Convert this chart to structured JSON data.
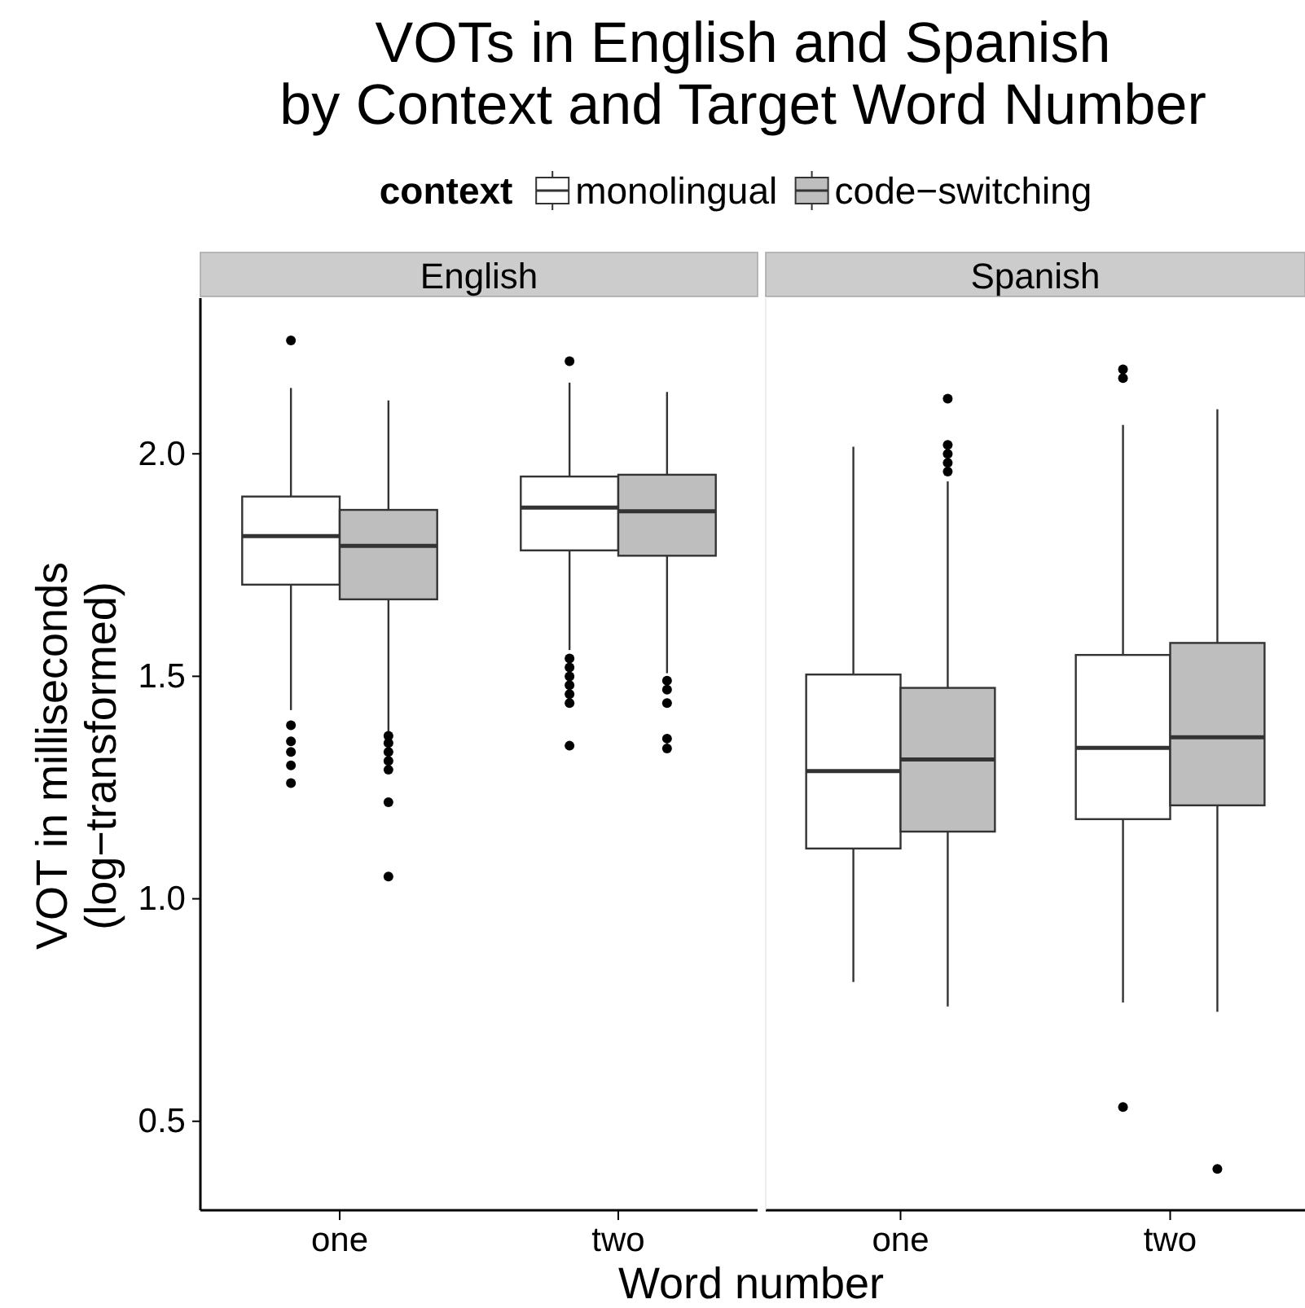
{
  "chart_data": [
    {
      "type": "box",
      "title": "VOTs in English and Spanish\nby Context and Target Word Number",
      "subtitle": "English",
      "xlabel": "Word number",
      "ylabel": "VOT in milliseconds\n(log−transformed)",
      "legend_title": "context",
      "legend": "top",
      "categories": [
        "one",
        "two"
      ],
      "ylim": [
        0.3,
        2.35
      ],
      "yticks": [
        0.5,
        {
          "value": 1,
          "label": "1.0"
        },
        1.5,
        {
          "value": 2,
          "label": "2.0"
        }
      ],
      "series": [
        {
          "name": "monolingual",
          "color": "#ffffff",
          "boxes": [
            {
              "low": 1.424,
              "q1": 1.706,
              "median": 1.815,
              "q3": 1.904,
              "high": 2.148,
              "outliers": [
                2.255,
                1.39,
                1.354,
                1.33,
                1.3,
                1.26
              ]
            },
            {
              "low": 1.559,
              "q1": 1.783,
              "median": 1.879,
              "q3": 1.949,
              "high": 2.16,
              "outliers": [
                2.208,
                1.54,
                1.52,
                1.5,
                1.48,
                1.46,
                1.44,
                1.344
              ]
            }
          ]
        },
        {
          "name": "code−switching",
          "color": "#bebebe",
          "boxes": [
            {
              "low": 1.372,
              "q1": 1.673,
              "median": 1.793,
              "q3": 1.874,
              "high": 2.12,
              "outliers": [
                1.366,
                1.35,
                1.33,
                1.31,
                1.29,
                1.217,
                1.05
              ]
            },
            {
              "low": 1.507,
              "q1": 1.771,
              "median": 1.871,
              "q3": 1.953,
              "high": 2.139,
              "outliers": [
                1.49,
                1.47,
                1.44,
                1.36,
                1.338
              ]
            }
          ]
        }
      ]
    },
    {
      "type": "box",
      "subtitle": "Spanish",
      "categories": [
        "one",
        "two"
      ],
      "ylim": [
        0.3,
        2.35
      ],
      "tick_labels": "x",
      "series": [
        {
          "color": "#ffffff",
          "boxes": [
            {
              "low": 0.813,
              "q1": 1.113,
              "median": 1.287,
              "q3": 1.504,
              "high": 2.016
            },
            {
              "low": 0.767,
              "q1": 1.179,
              "median": 1.339,
              "q3": 1.548,
              "high": 2.065,
              "outliers": [
                2.19,
                2.17,
                0.532
              ]
            }
          ]
        },
        {
          "color": "#bebebe",
          "boxes": [
            {
              "low": 0.758,
              "q1": 1.151,
              "median": 1.313,
              "q3": 1.474,
              "high": 1.938,
              "outliers": [
                2.124,
                2.02,
                2.0,
                1.98,
                1.96
              ]
            },
            {
              "low": 0.746,
              "q1": 1.21,
              "median": 1.363,
              "q3": 1.575,
              "high": 2.1,
              "outliers": [
                0.393
              ]
            }
          ]
        }
      ]
    }
  ]
}
